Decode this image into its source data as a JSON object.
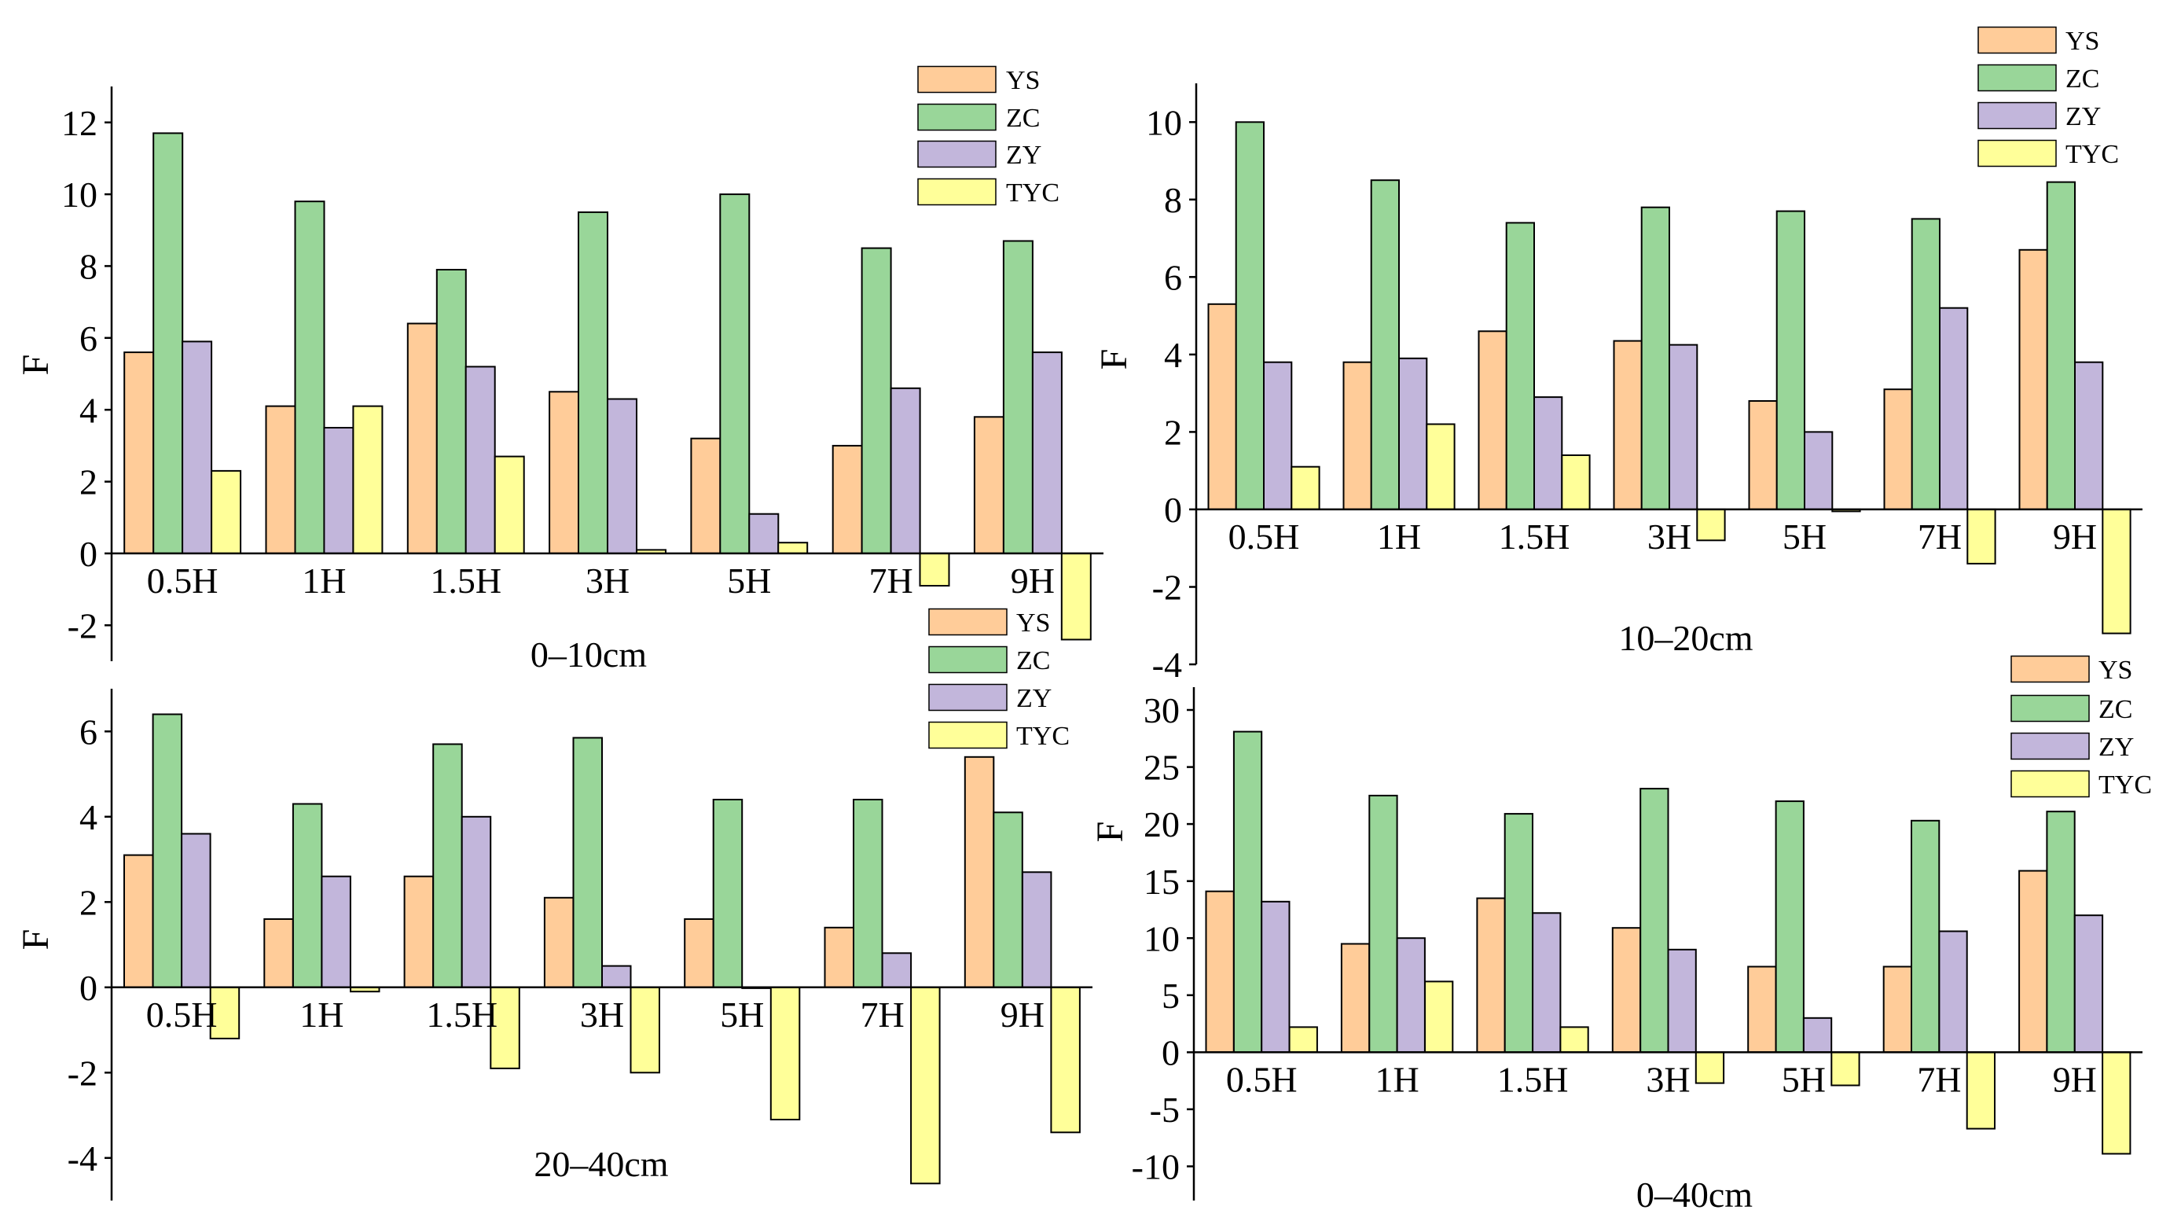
{
  "chart_data": [
    {
      "type": "bar",
      "title": "0–10cm",
      "xlabel": "",
      "ylabel": "F",
      "ylim": [
        -3,
        13
      ],
      "yticks": [
        -2,
        0,
        2,
        4,
        6,
        8,
        10,
        12
      ],
      "grid": false,
      "legend": "top-right",
      "categories": [
        "0.5H",
        "1H",
        "1.5H",
        "3H",
        "5H",
        "7H",
        "9H"
      ],
      "series": [
        {
          "name": "YS",
          "color": "#FFCC99",
          "values": [
            5.6,
            4.1,
            6.4,
            4.5,
            3.2,
            3.0,
            3.8
          ]
        },
        {
          "name": "ZC",
          "color": "#99D699",
          "values": [
            11.7,
            9.8,
            7.9,
            9.5,
            10.0,
            8.5,
            8.7
          ]
        },
        {
          "name": "ZY",
          "color": "#C2B6DB",
          "values": [
            5.9,
            3.5,
            5.2,
            4.3,
            1.1,
            4.6,
            5.6
          ]
        },
        {
          "name": "TYC",
          "color": "#FFFF99",
          "values": [
            2.3,
            4.1,
            2.7,
            0.1,
            0.3,
            -0.9,
            -2.4
          ]
        }
      ]
    },
    {
      "type": "bar",
      "title": "10–20cm",
      "xlabel": "",
      "ylabel": "F",
      "ylim": [
        -4,
        11
      ],
      "yticks": [
        -4,
        -2,
        0,
        2,
        4,
        6,
        8,
        10
      ],
      "grid": false,
      "legend": "top-right",
      "categories": [
        "0.5H",
        "1H",
        "1.5H",
        "3H",
        "5H",
        "7H",
        "9H"
      ],
      "series": [
        {
          "name": "YS",
          "color": "#FFCC99",
          "values": [
            5.3,
            3.8,
            4.6,
            4.35,
            2.8,
            3.1,
            6.7
          ]
        },
        {
          "name": "ZC",
          "color": "#99D699",
          "values": [
            10.0,
            8.5,
            7.4,
            7.8,
            7.7,
            7.5,
            8.45
          ]
        },
        {
          "name": "ZY",
          "color": "#C2B6DB",
          "values": [
            3.8,
            3.9,
            2.9,
            4.25,
            2.0,
            5.2,
            3.8
          ]
        },
        {
          "name": "TYC",
          "color": "#FFFF99",
          "values": [
            1.1,
            2.2,
            1.4,
            -0.8,
            -0.05,
            -1.4,
            -3.2
          ]
        }
      ]
    },
    {
      "type": "bar",
      "title": "20–40cm",
      "xlabel": "",
      "ylabel": "F",
      "ylim": [
        -5,
        7
      ],
      "yticks": [
        -4,
        -2,
        0,
        2,
        4,
        6
      ],
      "grid": false,
      "legend": "top-right",
      "categories": [
        "0.5H",
        "1H",
        "1.5H",
        "3H",
        "5H",
        "7H",
        "9H"
      ],
      "series": [
        {
          "name": "YS",
          "color": "#FFCC99",
          "values": [
            3.1,
            1.6,
            2.6,
            2.1,
            1.6,
            1.4,
            5.4
          ]
        },
        {
          "name": "ZC",
          "color": "#99D699",
          "values": [
            6.4,
            4.3,
            5.7,
            5.85,
            4.4,
            4.4,
            4.1
          ]
        },
        {
          "name": "ZY",
          "color": "#C2B6DB",
          "values": [
            3.6,
            2.6,
            4.0,
            0.5,
            -0.02,
            0.8,
            2.7
          ]
        },
        {
          "name": "TYC",
          "color": "#FFFF99",
          "values": [
            -1.2,
            -0.1,
            -1.9,
            -2.0,
            -3.1,
            -4.6,
            -3.4
          ]
        }
      ]
    },
    {
      "type": "bar",
      "title": "0–40cm",
      "xlabel": "",
      "ylabel": "F",
      "ylim": [
        -13,
        32
      ],
      "yticks": [
        -10,
        -5,
        0,
        5,
        10,
        15,
        20,
        25,
        30
      ],
      "grid": false,
      "legend": "top-right",
      "categories": [
        "0.5H",
        "1H",
        "1.5H",
        "3H",
        "5H",
        "7H",
        "9H"
      ],
      "series": [
        {
          "name": "YS",
          "color": "#FFCC99",
          "values": [
            14.1,
            9.5,
            13.5,
            10.9,
            7.5,
            7.5,
            15.9
          ]
        },
        {
          "name": "ZC",
          "color": "#99D699",
          "values": [
            28.1,
            22.5,
            20.9,
            23.1,
            22.0,
            20.3,
            21.1
          ]
        },
        {
          "name": "ZY",
          "color": "#C2B6DB",
          "values": [
            13.2,
            10.0,
            12.2,
            9.0,
            3.0,
            10.6,
            12.0
          ]
        },
        {
          "name": "TYC",
          "color": "#FFFF99",
          "values": [
            2.2,
            6.2,
            2.2,
            -2.7,
            -2.9,
            -6.7,
            -8.9
          ]
        }
      ]
    }
  ]
}
